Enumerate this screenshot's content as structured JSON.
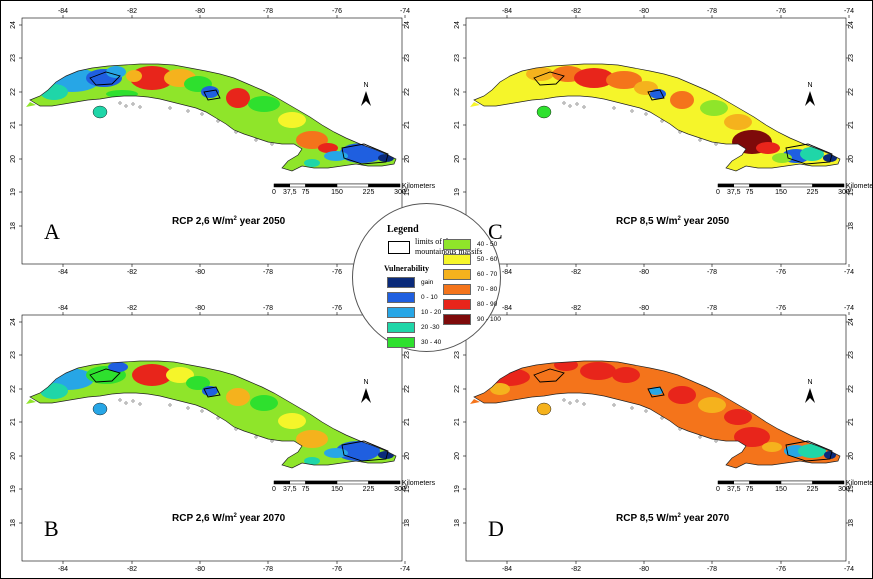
{
  "panels": [
    {
      "letter": "A",
      "title_prefix": "RCP 2,6 W/m",
      "title_sup": "2",
      "title_suffix": " year 2050",
      "scheme": "a"
    },
    {
      "letter": "C",
      "title_prefix": "RCP 8,5 W/m",
      "title_sup": "2",
      "title_suffix": " year 2050",
      "scheme": "c"
    },
    {
      "letter": "B",
      "title_prefix": "RCP 2,6 W/m",
      "title_sup": "2",
      "title_suffix": " year 2070",
      "scheme": "b"
    },
    {
      "letter": "D",
      "title_prefix": "RCP 8,5 W/m",
      "title_sup": "2",
      "title_suffix": " year 2070",
      "scheme": "d"
    }
  ],
  "axes": {
    "lon_ticks": [
      "-84",
      "-82",
      "-80",
      "-78",
      "-76",
      "-74"
    ],
    "lat_ticks": [
      "24",
      "23",
      "22",
      "21",
      "20",
      "19",
      "18"
    ]
  },
  "north_label": "N",
  "scalebar": {
    "ticks": [
      "0",
      "37,5",
      "75",
      "150",
      "225",
      "300"
    ],
    "unit": "Kilometers"
  },
  "legend": {
    "title": "Legend",
    "massif_label": "limits of the mountainous massifs",
    "vulnerability_title": "Vulnerability",
    "classes": [
      {
        "label": "gain",
        "color": "#0a2a7a"
      },
      {
        "label": "0 - 10",
        "color": "#1f5fe0"
      },
      {
        "label": "10 - 20",
        "color": "#27a6e6"
      },
      {
        "label": "20 -30",
        "color": "#1fd6a8"
      },
      {
        "label": "30 - 40",
        "color": "#2ee02e"
      },
      {
        "label": "40 - 50",
        "color": "#8fe52a"
      },
      {
        "label": "50 - 60",
        "color": "#f5f52a"
      },
      {
        "label": "60 - 70",
        "color": "#f5b21d"
      },
      {
        "label": "70 - 80",
        "color": "#f4741b"
      },
      {
        "label": "80 - 90",
        "color": "#e8251b"
      },
      {
        "label": "90 - 100",
        "color": "#7e0a0a"
      }
    ]
  }
}
